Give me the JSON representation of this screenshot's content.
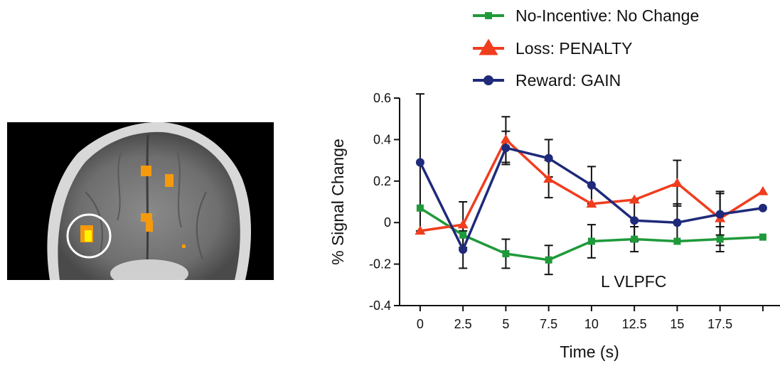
{
  "chart_data": {
    "type": "line",
    "title": "",
    "xlabel": "Time (s)",
    "ylabel": "% Signal Change",
    "x": [
      0,
      2.5,
      5,
      7.5,
      10,
      12.5,
      15,
      17.5,
      20
    ],
    "x_tick_labels": [
      "0",
      "2.5",
      "5",
      "7.5",
      "10",
      "12.5",
      "15",
      "17.5"
    ],
    "xlim": [
      -1.2,
      21
    ],
    "ylim": [
      -0.4,
      0.6
    ],
    "y_ticks": [
      0.6,
      0.4,
      0.2,
      0,
      -0.2,
      -0.4
    ],
    "y_tick_labels": [
      "0.6",
      "0.4",
      "0.2",
      "0",
      "-0.2",
      "-0.4"
    ],
    "annotation": "L VLPFC",
    "grid": false,
    "legend_position": "top-right",
    "series": [
      {
        "name": "No-Incentive: No Change",
        "color": "#1f9a3a",
        "marker": "square",
        "values": [
          0.07,
          -0.06,
          -0.15,
          -0.18,
          -0.09,
          -0.08,
          -0.09,
          -0.08,
          -0.07
        ],
        "err": [
          0,
          0,
          0.07,
          0.07,
          0.08,
          0.06,
          0,
          0.06,
          0
        ]
      },
      {
        "name": "Loss: PENALTY",
        "color": "#f03d1e",
        "marker": "triangle",
        "values": [
          -0.04,
          -0.01,
          0.4,
          0.21,
          0.09,
          0.11,
          0.19,
          0.02,
          0.15
        ],
        "err": [
          0,
          0.11,
          0.11,
          0.09,
          0,
          0,
          0.11,
          0.13,
          0
        ]
      },
      {
        "name": "Reward: GAIN",
        "color": "#1f2a7a",
        "marker": "circle",
        "values": [
          0.29,
          -0.13,
          0.36,
          0.31,
          0.18,
          0.01,
          0.0,
          0.04,
          0.07
        ],
        "err": [
          0.33,
          0.09,
          0.08,
          0.09,
          0.09,
          0.1,
          0.09,
          0.1,
          0
        ]
      }
    ],
    "brain_image": {
      "background": "#000000",
      "highlight_circle_color": "#ffffff",
      "activation_color": "#f59a0c",
      "peak_color": "#fff200"
    }
  }
}
